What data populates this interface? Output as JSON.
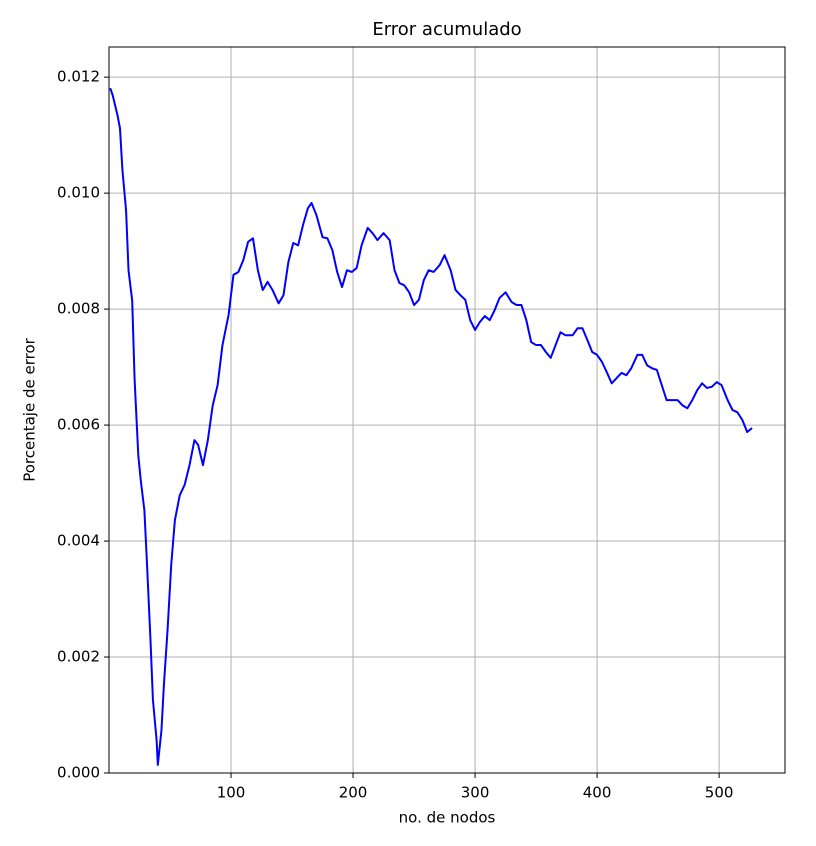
{
  "chart_data": {
    "type": "line",
    "title": "Error acumulado",
    "x_label": "no. de nodos",
    "y_label": "Porcentaje de error",
    "x": [
      1,
      3,
      7,
      9,
      11,
      14,
      16,
      19,
      21,
      24,
      26,
      29,
      31,
      34,
      36,
      39,
      40,
      43,
      45,
      48,
      51,
      54,
      58,
      62,
      66,
      70,
      73,
      77,
      81,
      85,
      89,
      93,
      98,
      102,
      106,
      110,
      114,
      118,
      122,
      126,
      130,
      134,
      139,
      143,
      147,
      151,
      155,
      159,
      163,
      166,
      170,
      175,
      179,
      183,
      187,
      191,
      195,
      199,
      203,
      207,
      212,
      216,
      220,
      225,
      230,
      234,
      238,
      242,
      246,
      250,
      254,
      258,
      262,
      266,
      271,
      275,
      280,
      284,
      288,
      292,
      296,
      300,
      304,
      308,
      312,
      316,
      320,
      325,
      330,
      334,
      338,
      342,
      346,
      350,
      354,
      358,
      362,
      366,
      370,
      374,
      380,
      384,
      388,
      392,
      396,
      400,
      404,
      408,
      412,
      416,
      420,
      424,
      428,
      433,
      437,
      441,
      445,
      449,
      453,
      457,
      461,
      466,
      470,
      474,
      478,
      482,
      486,
      490,
      494,
      498,
      502,
      507,
      511,
      515,
      519,
      523,
      527
    ],
    "values": [
      0.01181,
      0.01169,
      0.01134,
      0.01112,
      0.0104,
      0.0097,
      0.00867,
      0.00815,
      0.00678,
      0.00548,
      0.00505,
      0.00453,
      0.00367,
      0.00229,
      0.00126,
      0.00057,
      0.00014,
      0.00074,
      0.00152,
      0.00247,
      0.00359,
      0.00436,
      0.00479,
      0.00497,
      0.00531,
      0.00574,
      0.00566,
      0.00531,
      0.00574,
      0.00634,
      0.00669,
      0.00738,
      0.0079,
      0.00859,
      0.00864,
      0.00884,
      0.00916,
      0.00922,
      0.00867,
      0.00833,
      0.00847,
      0.00833,
      0.0081,
      0.00824,
      0.00881,
      0.00914,
      0.0091,
      0.00945,
      0.00974,
      0.00983,
      0.00962,
      0.00924,
      0.00922,
      0.00902,
      0.00864,
      0.00838,
      0.00867,
      0.00864,
      0.00871,
      0.0091,
      0.0094,
      0.00931,
      0.00919,
      0.00931,
      0.00919,
      0.00867,
      0.00845,
      0.00841,
      0.00829,
      0.00807,
      0.00816,
      0.0085,
      0.00867,
      0.00864,
      0.00876,
      0.00893,
      0.00867,
      0.00833,
      0.00824,
      0.00816,
      0.00781,
      0.00764,
      0.00778,
      0.00788,
      0.00781,
      0.00798,
      0.00819,
      0.00829,
      0.00812,
      0.00807,
      0.00807,
      0.00781,
      0.00743,
      0.00738,
      0.00738,
      0.00726,
      0.00716,
      0.00738,
      0.0076,
      0.00755,
      0.00755,
      0.00767,
      0.00767,
      0.00747,
      0.00726,
      0.00721,
      0.00709,
      0.00691,
      0.00672,
      0.00681,
      0.0069,
      0.00686,
      0.00698,
      0.00721,
      0.00721,
      0.00703,
      0.00698,
      0.00695,
      0.00669,
      0.00643,
      0.00643,
      0.00643,
      0.00634,
      0.00629,
      0.00643,
      0.0066,
      0.00672,
      0.00664,
      0.00666,
      0.00674,
      0.00669,
      0.00643,
      0.00626,
      0.00622,
      0.00609,
      0.00588,
      0.00595
    ],
    "color": "#0000ff",
    "xlim": [
      0,
      554
    ],
    "ylim": [
      0,
      0.01252
    ],
    "xticks": [
      100,
      200,
      300,
      400,
      500
    ],
    "yticks": [
      {
        "value": 0,
        "label": "0.000"
      },
      {
        "value": 0.002,
        "label": "0.002"
      },
      {
        "value": 0.004,
        "label": "0.004"
      },
      {
        "value": 0.006,
        "label": "0.006"
      },
      {
        "value": 0.008,
        "label": "0.008"
      },
      {
        "value": 0.01,
        "label": "0.010"
      },
      {
        "value": 0.012,
        "label": "0.012"
      }
    ],
    "grid": true
  }
}
